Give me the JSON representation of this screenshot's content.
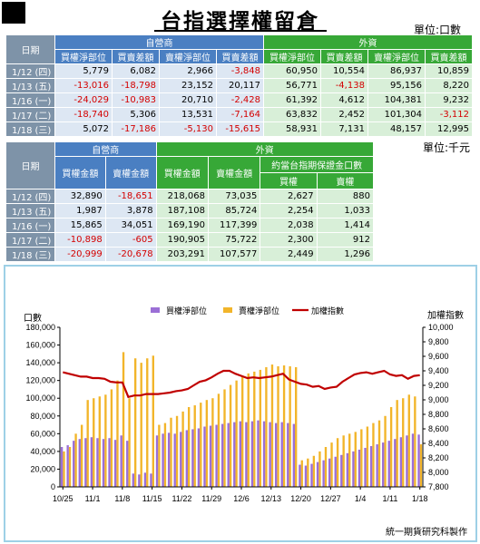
{
  "title": "台指選擇權留倉",
  "units": {
    "top": "單位:口數",
    "bottom": "單位:千元"
  },
  "table1": {
    "date_header": "日期",
    "group_headers": [
      "自營商",
      "外資"
    ],
    "col_headers": [
      "買權淨部位",
      "買賣差額",
      "賣權淨部位",
      "買賣差額",
      "買權淨部位",
      "買賣差額",
      "賣權淨部位",
      "買賣差額"
    ],
    "rows": [
      {
        "date": "1/12",
        "day": "(四)",
        "values": [
          "5,779",
          "6,082",
          "2,966",
          "-3,848",
          "60,950",
          "10,554",
          "86,937",
          "10,859"
        ]
      },
      {
        "date": "1/13",
        "day": "(五)",
        "values": [
          "-13,016",
          "-18,798",
          "23,152",
          "20,117",
          "56,771",
          "-4,138",
          "95,156",
          "8,220"
        ]
      },
      {
        "date": "1/16",
        "day": "(一)",
        "values": [
          "-24,029",
          "-10,983",
          "20,710",
          "-2,428",
          "61,392",
          "4,612",
          "104,381",
          "9,232"
        ]
      },
      {
        "date": "1/17",
        "day": "(二)",
        "values": [
          "-18,740",
          "5,306",
          "13,531",
          "-7,164",
          "63,832",
          "2,452",
          "101,304",
          "-3,112"
        ]
      },
      {
        "date": "1/18",
        "day": "(三)",
        "values": [
          "5,072",
          "-17,186",
          "-5,130",
          "-15,615",
          "58,931",
          "7,131",
          "48,157",
          "12,995"
        ]
      }
    ]
  },
  "table2": {
    "date_header": "日期",
    "group_headers": [
      "自營商",
      "外資"
    ],
    "sub_group_header": "約當台指期保證金口數",
    "col_headers": [
      "買權金額",
      "賣權金額",
      "買權金額",
      "賣權金額",
      "買權",
      "賣權"
    ],
    "rows": [
      {
        "date": "1/12",
        "day": "(四)",
        "values": [
          "32,890",
          "-18,651",
          "218,068",
          "73,035",
          "2,627",
          "880"
        ]
      },
      {
        "date": "1/13",
        "day": "(五)",
        "values": [
          "1,987",
          "3,878",
          "187,108",
          "85,724",
          "2,254",
          "1,033"
        ]
      },
      {
        "date": "1/16",
        "day": "(一)",
        "values": [
          "15,865",
          "34,051",
          "169,190",
          "117,399",
          "2,038",
          "1,414"
        ]
      },
      {
        "date": "1/17",
        "day": "(二)",
        "values": [
          "-10,898",
          "-605",
          "190,905",
          "75,722",
          "2,300",
          "912"
        ]
      },
      {
        "date": "1/18",
        "day": "(三)",
        "values": [
          "-20,999",
          "-20,678",
          "203,291",
          "107,577",
          "2,449",
          "1,296"
        ]
      }
    ]
  },
  "credit": "統一期貨研究科製作",
  "chart_data": {
    "type": "bar",
    "left_axis_label": "口數",
    "right_axis_label": "加權指數",
    "ylim": [
      0,
      180000
    ],
    "y_ticks": [
      "0",
      "20,000",
      "40,000",
      "60,000",
      "80,000",
      "100,000",
      "120,000",
      "140,000",
      "160,000",
      "180,000"
    ],
    "y2lim": [
      7800,
      10000
    ],
    "y2_ticks": [
      "7,800",
      "8,000",
      "8,200",
      "8,400",
      "8,600",
      "8,800",
      "9,000",
      "9,200",
      "9,400",
      "9,600",
      "9,800",
      "10,000"
    ],
    "x_tick_labels": [
      "10/25",
      "11/1",
      "11/8",
      "11/15",
      "11/22",
      "11/29",
      "12/6",
      "12/13",
      "12/20",
      "12/27",
      "1/4",
      "1/11",
      "1/18"
    ],
    "x_tick_index": [
      0,
      5,
      10,
      15,
      20,
      25,
      30,
      35,
      40,
      45,
      50,
      55,
      60
    ],
    "series": [
      {
        "name": "買權淨部位",
        "kind": "bar",
        "color": "#9b6fd6",
        "values": [
          45000,
          47000,
          52000,
          54000,
          55000,
          56000,
          55000,
          54000,
          55000,
          53000,
          58000,
          52000,
          15000,
          14000,
          16000,
          15000,
          58000,
          60000,
          61000,
          60000,
          62000,
          64000,
          65000,
          66000,
          68000,
          69000,
          70000,
          71000,
          72000,
          73000,
          74000,
          73000,
          74000,
          75000,
          74000,
          73000,
          72000,
          73000,
          72000,
          71000,
          25000,
          24000,
          26000,
          28000,
          30000,
          32000,
          34000,
          36000,
          38000,
          40000,
          42000,
          44000,
          46000,
          48000,
          50000,
          52000,
          54000,
          56000,
          58000,
          60000,
          59000
        ]
      },
      {
        "name": "賣權淨部位",
        "kind": "bar",
        "color": "#f2b52a",
        "values": [
          40000,
          45000,
          60000,
          70000,
          98000,
          100000,
          102000,
          104000,
          110000,
          120000,
          152000,
          100000,
          145000,
          140000,
          145000,
          148000,
          70000,
          72000,
          78000,
          80000,
          85000,
          90000,
          92000,
          95000,
          98000,
          100000,
          105000,
          110000,
          115000,
          120000,
          125000,
          128000,
          130000,
          132000,
          135000,
          138000,
          136000,
          137000,
          136000,
          135000,
          30000,
          32000,
          35000,
          40000,
          45000,
          50000,
          55000,
          58000,
          60000,
          62000,
          65000,
          68000,
          72000,
          75000,
          80000,
          90000,
          98000,
          100000,
          104000,
          102000,
          48000
        ]
      },
      {
        "name": "加權指數",
        "kind": "line",
        "color": "#c00000",
        "axis": "right",
        "values": [
          9380,
          9360,
          9340,
          9320,
          9320,
          9300,
          9300,
          9290,
          9250,
          9240,
          9240,
          9040,
          9060,
          9060,
          9080,
          9080,
          9080,
          9090,
          9100,
          9120,
          9130,
          9150,
          9200,
          9250,
          9270,
          9310,
          9360,
          9400,
          9400,
          9360,
          9330,
          9300,
          9310,
          9300,
          9310,
          9320,
          9340,
          9360,
          9280,
          9250,
          9220,
          9210,
          9180,
          9190,
          9150,
          9170,
          9180,
          9250,
          9300,
          9350,
          9370,
          9380,
          9360,
          9380,
          9400,
          9350,
          9330,
          9340,
          9290,
          9330,
          9340
        ]
      }
    ]
  }
}
